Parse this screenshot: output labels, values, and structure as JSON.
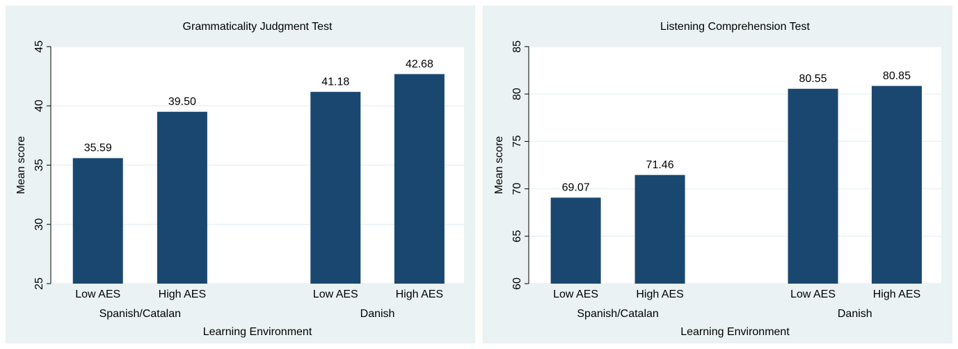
{
  "chart_data": [
    {
      "type": "bar",
      "title": "Grammaticality Judgment Test",
      "categories": [
        "Low AES",
        "High AES",
        "Low AES",
        "High AES"
      ],
      "groups": [
        "Spanish/Catalan",
        "Danish"
      ],
      "values": [
        35.59,
        39.5,
        41.18,
        42.68
      ],
      "value_labels": [
        "35.59",
        "39.50",
        "41.18",
        "42.68"
      ],
      "color": "#1a476f",
      "xlabel": "Learning Environment",
      "ylabel": "Mean score",
      "ylim": [
        25,
        45
      ],
      "yticks": [
        25,
        30,
        35,
        40,
        45
      ],
      "grid": true
    },
    {
      "type": "bar",
      "title": "Listening Comprehension Test",
      "categories": [
        "Low AES",
        "High AES",
        "Low AES",
        "High AES"
      ],
      "groups": [
        "Spanish/Catalan",
        "Danish"
      ],
      "values": [
        69.07,
        71.46,
        80.55,
        80.85
      ],
      "value_labels": [
        "69.07",
        "71.46",
        "80.55",
        "80.85"
      ],
      "color": "#1a476f",
      "xlabel": "Learning Environment",
      "ylabel": "Mean score",
      "ylim": [
        60,
        85
      ],
      "yticks": [
        60,
        65,
        70,
        75,
        80,
        85
      ],
      "grid": true
    }
  ]
}
